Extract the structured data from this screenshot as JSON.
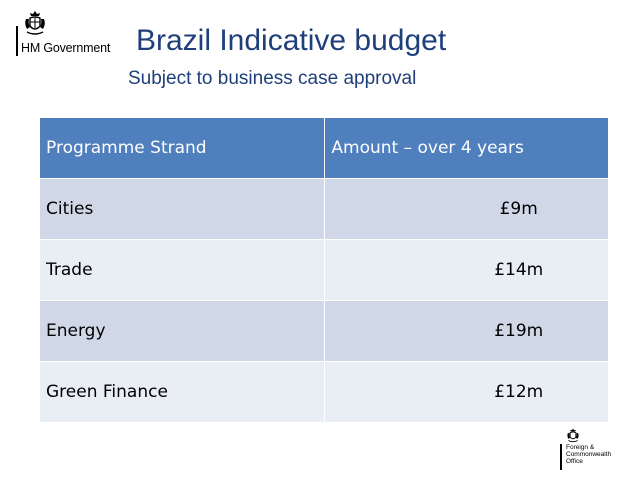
{
  "branding": {
    "left_logo_text": "HM Government",
    "left_logo_icon": "royal-crest-icon",
    "right_logo_lines": [
      "Foreign &",
      "Commonwealth",
      "Office"
    ],
    "right_logo_icon": "royal-crest-icon"
  },
  "slide": {
    "title": "Brazil Indicative budget",
    "subtitle": "Subject to business case approval"
  },
  "table": {
    "headers": [
      "Programme Strand",
      "Amount – over 4 years"
    ],
    "rows": [
      {
        "strand": "Cities",
        "amount": "£9m"
      },
      {
        "strand": "Trade",
        "amount": "£14m"
      },
      {
        "strand": "Energy",
        "amount": "£19m"
      },
      {
        "strand": "Green Finance",
        "amount": "£12m"
      }
    ]
  },
  "colors": {
    "title": "#1f3f7a",
    "header_bg": "#4f7fbd",
    "row_odd": "#d0d8e8",
    "row_even": "#e9edf4"
  }
}
